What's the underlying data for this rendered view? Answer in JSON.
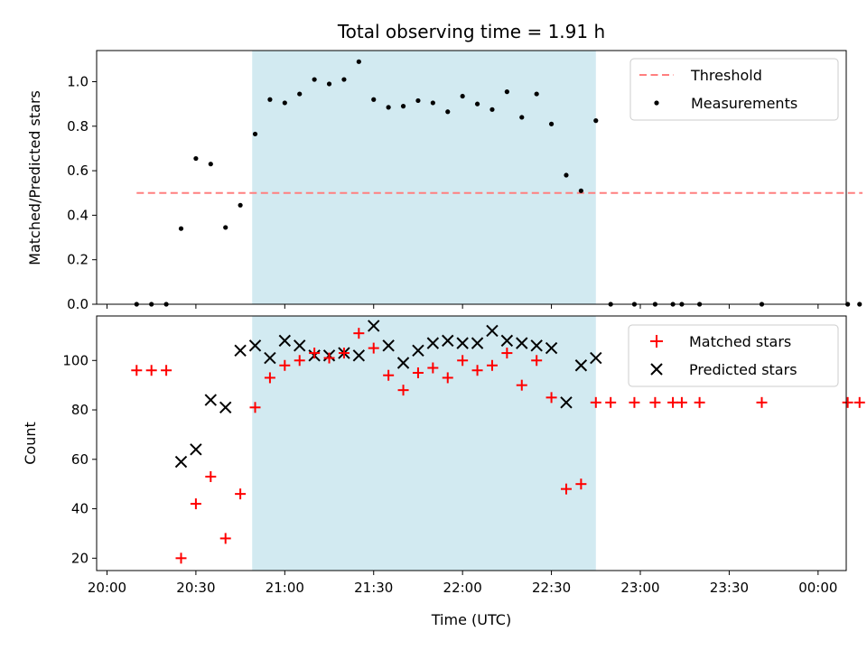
{
  "chart_data": [
    {
      "type": "scatter",
      "panel": "top",
      "title": "Total observing time = 1.91 h",
      "ylabel": "Matched/Predicted stars",
      "xlabel": "",
      "ylim": [
        0,
        1.14
      ],
      "yticks": [
        "0.0",
        "0.2",
        "0.4",
        "0.6",
        "0.8",
        "1.0"
      ],
      "grid": false,
      "legend": "top-right",
      "shaded_interval": [
        "20:49",
        "22:45"
      ],
      "colors": {
        "shade": "#add8e6",
        "threshold": "#ff7f7f",
        "measurements": "#000000"
      },
      "threshold": {
        "name": "Threshold",
        "value": 0.5,
        "x_range": [
          "20:10",
          "00:15"
        ]
      },
      "series": [
        {
          "name": "Measurements",
          "points": [
            [
              "20:10",
              0.0
            ],
            [
              "20:15",
              0.0
            ],
            [
              "20:20",
              0.0
            ],
            [
              "20:25",
              0.34
            ],
            [
              "20:30",
              0.655
            ],
            [
              "20:35",
              0.63
            ],
            [
              "20:40",
              0.345
            ],
            [
              "20:45",
              0.445
            ],
            [
              "20:50",
              0.765
            ],
            [
              "20:55",
              0.92
            ],
            [
              "21:00",
              0.905
            ],
            [
              "21:05",
              0.945
            ],
            [
              "21:10",
              1.01
            ],
            [
              "21:15",
              0.99
            ],
            [
              "21:20",
              1.01
            ],
            [
              "21:25",
              1.09
            ],
            [
              "21:30",
              0.92
            ],
            [
              "21:35",
              0.885
            ],
            [
              "21:40",
              0.89
            ],
            [
              "21:45",
              0.915
            ],
            [
              "21:50",
              0.905
            ],
            [
              "21:55",
              0.865
            ],
            [
              "22:00",
              0.935
            ],
            [
              "22:05",
              0.9
            ],
            [
              "22:10",
              0.875
            ],
            [
              "22:15",
              0.955
            ],
            [
              "22:20",
              0.84
            ],
            [
              "22:25",
              0.945
            ],
            [
              "22:30",
              0.81
            ],
            [
              "22:35",
              0.58
            ],
            [
              "22:40",
              0.51
            ],
            [
              "22:45",
              0.825
            ],
            [
              "22:50",
              0.0
            ],
            [
              "22:58",
              0.0
            ],
            [
              "23:05",
              0.0
            ],
            [
              "23:11",
              0.0
            ],
            [
              "23:14",
              0.0
            ],
            [
              "23:20",
              0.0
            ],
            [
              "23:41",
              0.0
            ],
            [
              "00:10",
              0.0
            ],
            [
              "00:14",
              0.0
            ]
          ]
        }
      ]
    },
    {
      "type": "scatter",
      "panel": "bottom",
      "title": "",
      "xlabel": "Time (UTC)",
      "ylabel": "Count",
      "ylim": [
        15,
        118
      ],
      "yticks": [
        "20",
        "40",
        "60",
        "80",
        "100"
      ],
      "xticks": [
        "20:00",
        "20:30",
        "21:00",
        "21:30",
        "22:00",
        "22:30",
        "23:00",
        "23:30",
        "00:00"
      ],
      "grid": false,
      "legend": "top-right",
      "shaded_interval": [
        "20:49",
        "22:45"
      ],
      "colors": {
        "shade": "#add8e6",
        "matched": "#ff0000",
        "predicted": "#000000"
      },
      "series": [
        {
          "name": "Matched stars",
          "marker": "+",
          "points": [
            [
              "20:10",
              96
            ],
            [
              "20:15",
              96
            ],
            [
              "20:20",
              96
            ],
            [
              "20:25",
              20
            ],
            [
              "20:30",
              42
            ],
            [
              "20:35",
              53
            ],
            [
              "20:40",
              28
            ],
            [
              "20:45",
              46
            ],
            [
              "20:50",
              81
            ],
            [
              "20:55",
              93
            ],
            [
              "21:00",
              98
            ],
            [
              "21:05",
              100
            ],
            [
              "21:10",
              103
            ],
            [
              "21:15",
              101
            ],
            [
              "21:20",
              103
            ],
            [
              "21:25",
              111
            ],
            [
              "21:30",
              105
            ],
            [
              "21:35",
              94
            ],
            [
              "21:40",
              88
            ],
            [
              "21:45",
              95
            ],
            [
              "21:50",
              97
            ],
            [
              "21:55",
              93
            ],
            [
              "22:00",
              100
            ],
            [
              "22:05",
              96
            ],
            [
              "22:10",
              98
            ],
            [
              "22:15",
              103
            ],
            [
              "22:20",
              90
            ],
            [
              "22:25",
              100
            ],
            [
              "22:30",
              85
            ],
            [
              "22:35",
              48
            ],
            [
              "22:40",
              50
            ],
            [
              "22:45",
              83
            ],
            [
              "22:50",
              83
            ],
            [
              "22:58",
              83
            ],
            [
              "23:05",
              83
            ],
            [
              "23:11",
              83
            ],
            [
              "23:14",
              83
            ],
            [
              "23:20",
              83
            ],
            [
              "23:41",
              83
            ],
            [
              "00:10",
              83
            ],
            [
              "00:14",
              83
            ]
          ]
        },
        {
          "name": "Predicted stars",
          "marker": "x",
          "points": [
            [
              "20:25",
              59
            ],
            [
              "20:30",
              64
            ],
            [
              "20:35",
              84
            ],
            [
              "20:40",
              81
            ],
            [
              "20:45",
              104
            ],
            [
              "20:50",
              106
            ],
            [
              "20:55",
              101
            ],
            [
              "21:00",
              108
            ],
            [
              "21:05",
              106
            ],
            [
              "21:10",
              102
            ],
            [
              "21:15",
              102
            ],
            [
              "21:20",
              103
            ],
            [
              "21:25",
              102
            ],
            [
              "21:30",
              114
            ],
            [
              "21:35",
              106
            ],
            [
              "21:40",
              99
            ],
            [
              "21:45",
              104
            ],
            [
              "21:50",
              107
            ],
            [
              "21:55",
              108
            ],
            [
              "22:00",
              107
            ],
            [
              "22:05",
              107
            ],
            [
              "22:10",
              112
            ],
            [
              "22:15",
              108
            ],
            [
              "22:20",
              107
            ],
            [
              "22:25",
              106
            ],
            [
              "22:30",
              105
            ],
            [
              "22:35",
              83
            ],
            [
              "22:40",
              98
            ],
            [
              "22:45",
              101
            ]
          ]
        }
      ]
    }
  ]
}
